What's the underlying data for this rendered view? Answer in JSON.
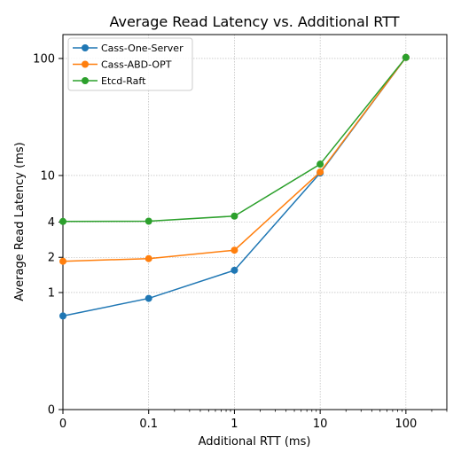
{
  "chart_data": {
    "type": "line",
    "title": "Average Read Latency vs. Additional RTT",
    "xlabel": "Additional RTT (ms)",
    "ylabel": "Average Read Latency (ms)",
    "x_scale": "symlog",
    "y_scale": "symlog",
    "x": [
      0,
      0.1,
      1,
      10,
      100
    ],
    "x_tick_values": [
      0,
      0.1,
      1,
      10,
      100
    ],
    "x_tick_labels": [
      "0",
      "0.1",
      "1",
      "10",
      "100"
    ],
    "y_tick_values": [
      0,
      1,
      2,
      4,
      10,
      100
    ],
    "y_tick_labels": [
      "0",
      "1",
      "2",
      "4",
      "10",
      "100"
    ],
    "xlim": [
      0,
      300
    ],
    "ylim": [
      0,
      160
    ],
    "grid": true,
    "legend_position": "top-left",
    "series": [
      {
        "name": "Cass-One-Server",
        "color": "#1f77b4",
        "values": [
          0.8,
          0.95,
          1.55,
          10.5,
          102
        ]
      },
      {
        "name": "Cass-ABD-OPT",
        "color": "#ff7f0e",
        "values": [
          1.85,
          1.95,
          2.3,
          10.7,
          102
        ]
      },
      {
        "name": "Etcd-Raft",
        "color": "#2ca02c",
        "values": [
          4.05,
          4.07,
          4.5,
          12.5,
          102
        ]
      }
    ]
  }
}
